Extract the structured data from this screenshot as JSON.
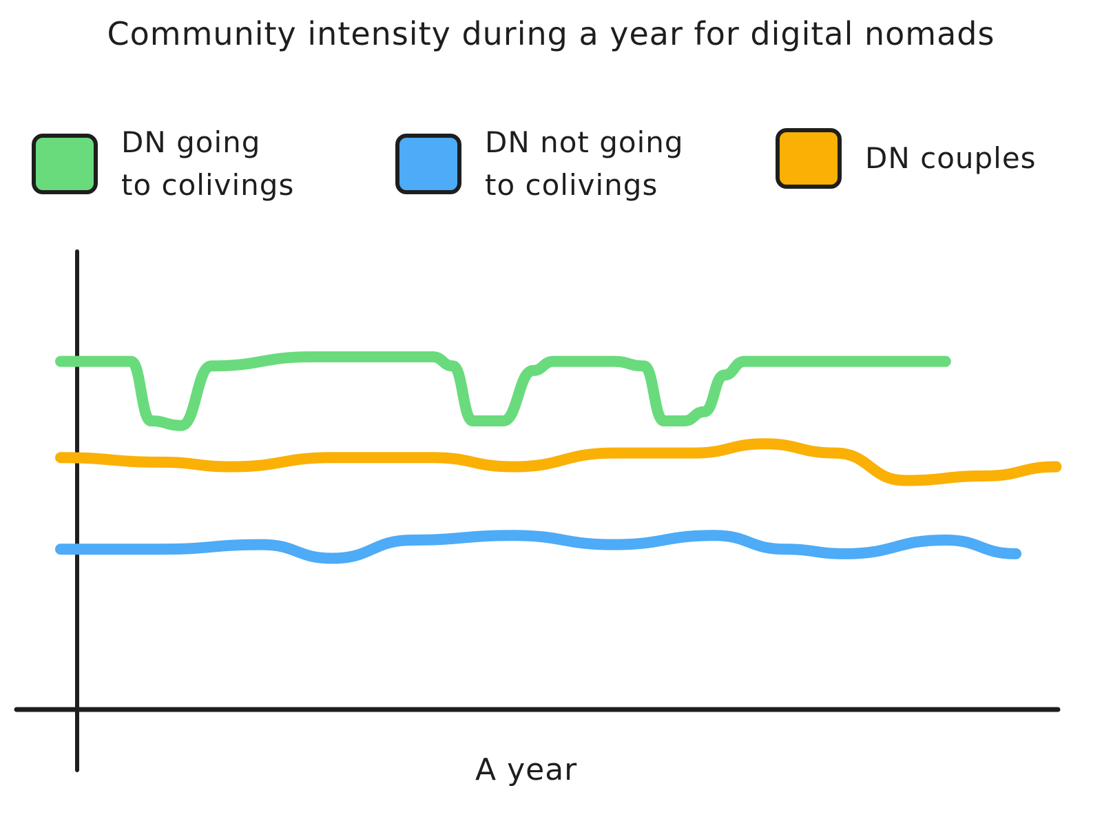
{
  "chart_data": {
    "type": "line",
    "title": "Community intensity during a year for digital nomads",
    "xlabel": "A year",
    "ylabel": "",
    "grid": false,
    "legend_position": "top",
    "x_unit": "relative position across the year (0-100)",
    "y_unit": "relative intensity (0-100, unlabeled axis)",
    "ylim": [
      0,
      100
    ],
    "series": [
      {
        "name": "DN going to colivings",
        "color": "#69db7c",
        "x": [
          0,
          5,
          7,
          9,
          12,
          15,
          25,
          37,
          39,
          41,
          44,
          47,
          49,
          55,
          58,
          60,
          62,
          64,
          66,
          68,
          74,
          80,
          88
        ],
        "values": [
          76,
          76,
          76,
          63,
          62,
          75,
          77,
          77,
          75,
          63,
          63,
          74,
          76,
          76,
          75,
          63,
          63,
          65,
          73,
          76,
          76,
          76,
          76
        ]
      },
      {
        "name": "DN not going to colivings",
        "color": "#4dabf7",
        "x": [
          0,
          10,
          20,
          27,
          35,
          45,
          55,
          65,
          72,
          78,
          88,
          95
        ],
        "values": [
          35,
          35,
          36,
          33,
          37,
          38,
          36,
          38,
          35,
          34,
          37,
          34
        ]
      },
      {
        "name": "DN couples",
        "color": "#fab005",
        "x": [
          0,
          10,
          17,
          27,
          37,
          45,
          55,
          63,
          70,
          77,
          84,
          92,
          99
        ],
        "values": [
          55,
          54,
          53,
          55,
          55,
          53,
          56,
          56,
          58,
          56,
          50,
          51,
          53
        ]
      }
    ]
  },
  "title": "Community intensity during a year for digital nomads",
  "legend": [
    {
      "label": "DN going\nto colivings",
      "color": "#69db7c"
    },
    {
      "label": "DN not going\nto colivings",
      "color": "#4dabf7"
    },
    {
      "label": "DN couples",
      "color": "#fab005"
    }
  ],
  "axis": {
    "xlabel": "A year"
  }
}
